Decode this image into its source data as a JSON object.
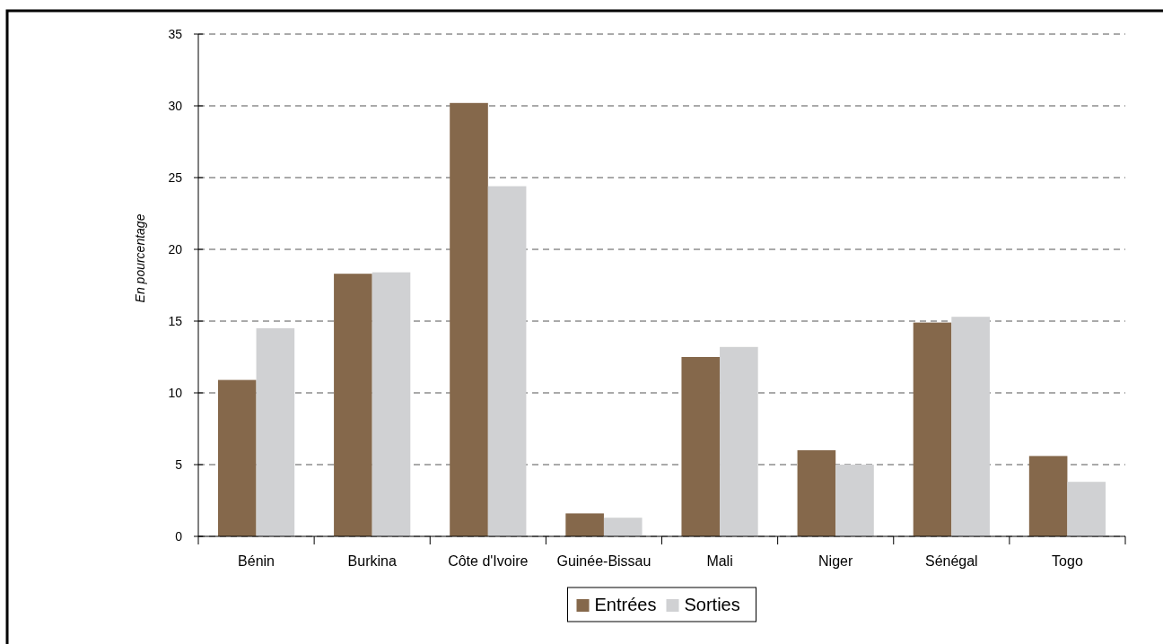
{
  "chart_data": {
    "type": "bar",
    "ylabel": "En pourcentage",
    "categories": [
      "Bénin",
      "Burkina",
      "Côte d'Ivoire",
      "Guinée-Bissau",
      "Mali",
      "Niger",
      "Sénégal",
      "Togo"
    ],
    "series": [
      {
        "name": "Entrées",
        "color": "#85684b",
        "values": [
          10.9,
          18.3,
          30.2,
          1.6,
          12.5,
          6.0,
          14.9,
          5.6
        ]
      },
      {
        "name": "Sorties",
        "color": "#d0d1d3",
        "values": [
          14.5,
          18.4,
          24.4,
          1.3,
          13.2,
          5.0,
          15.3,
          3.8
        ]
      }
    ],
    "ylim": [
      0,
      35
    ],
    "yticks": [
      0,
      5,
      10,
      15,
      20,
      25,
      30,
      35
    ],
    "grid": "y",
    "legend": "bottom"
  }
}
